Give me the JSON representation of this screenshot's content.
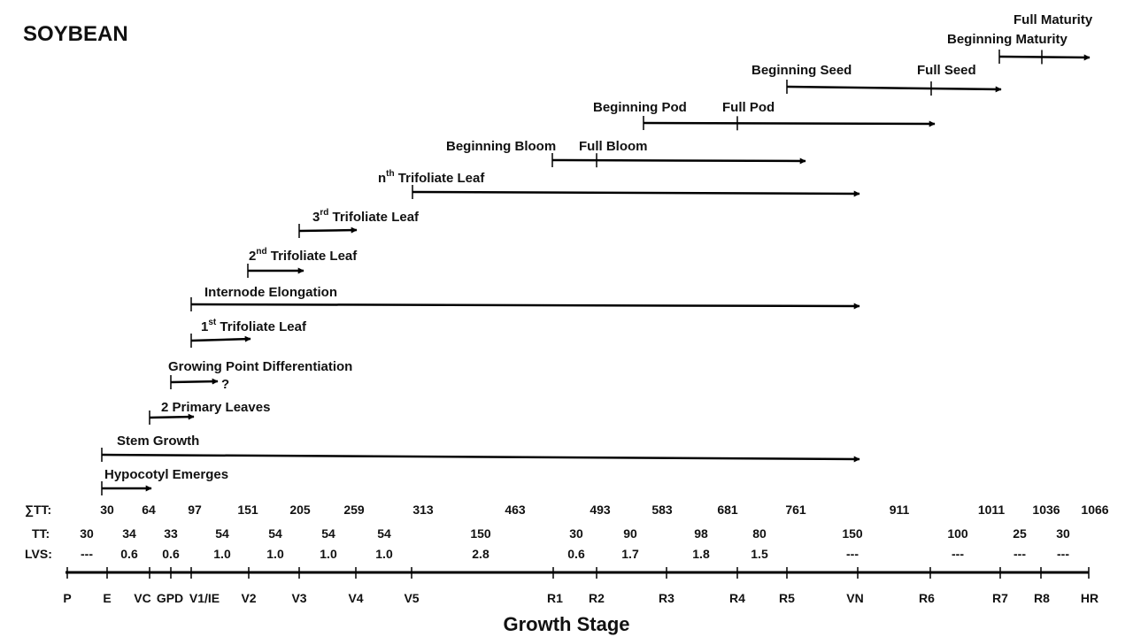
{
  "title": "SOYBEAN",
  "axis_title": "Growth Stage",
  "row_labels": {
    "sum_tt": "∑TT:",
    "tt": "TT:",
    "lvs": "LVS:"
  },
  "stages": [
    {
      "key": "P",
      "label": "P"
    },
    {
      "key": "E",
      "label": "E"
    },
    {
      "key": "VC",
      "label": "VC"
    },
    {
      "key": "GPD",
      "label": "GPD"
    },
    {
      "key": "V1",
      "label": "V1/IE"
    },
    {
      "key": "V2",
      "label": "V2"
    },
    {
      "key": "V3",
      "label": "V3"
    },
    {
      "key": "V4",
      "label": "V4"
    },
    {
      "key": "V5",
      "label": "V5"
    },
    {
      "key": "R1",
      "label": "R1"
    },
    {
      "key": "R2",
      "label": "R2"
    },
    {
      "key": "R3",
      "label": "R3"
    },
    {
      "key": "R4",
      "label": "R4"
    },
    {
      "key": "R5",
      "label": "R5"
    },
    {
      "key": "VN",
      "label": "VN"
    },
    {
      "key": "R6",
      "label": "R6"
    },
    {
      "key": "R7",
      "label": "R7"
    },
    {
      "key": "R8",
      "label": "R8"
    },
    {
      "key": "HR",
      "label": "HR"
    }
  ],
  "sum_tt": [
    "30",
    "64",
    "97",
    "151",
    "205",
    "259",
    "313",
    "463",
    "493",
    "583",
    "681",
    "761",
    "911",
    "1011",
    "1036",
    "1066"
  ],
  "tt": [
    "30",
    "34",
    "33",
    "54",
    "54",
    "54",
    "54",
    "150",
    "30",
    "90",
    "98",
    "80",
    "150",
    "100",
    "25",
    "30"
  ],
  "lvs": [
    "---",
    "0.6",
    "0.6",
    "1.0",
    "1.0",
    "1.0",
    "1.0",
    "2.8",
    "0.6",
    "1.7",
    "1.8",
    "1.5",
    "---",
    "---",
    "---",
    "---"
  ],
  "events": [
    {
      "name": "hypocotyl-emerges",
      "label": "Hypocotyl Emerges",
      "from": "E",
      "to": "VC"
    },
    {
      "name": "stem-growth",
      "label": "Stem Growth",
      "from": "E",
      "to": "VN"
    },
    {
      "name": "2-primary-leaves",
      "label": "2 Primary Leaves",
      "from": "VC",
      "to": "V1"
    },
    {
      "name": "growing-point-diff",
      "label": "Growing Point Differentiation",
      "from": "GPD",
      "to": "V1+",
      "suffix": "?"
    },
    {
      "name": "1st-trifoliate",
      "sup": "st",
      "pre": "1",
      "label": " Trifoliate  Leaf",
      "from": "V1",
      "to": "V2"
    },
    {
      "name": "internode-elong",
      "label": "Internode Elongation",
      "from": "V1",
      "to": "VN"
    },
    {
      "name": "2nd-trifoliate",
      "sup": "nd",
      "pre": "2",
      "label": " Trifoliate  Leaf",
      "from": "V2",
      "to": "V3"
    },
    {
      "name": "3rd-trifoliate",
      "sup": "rd",
      "pre": "3",
      "label": " Trifoliate  Leaf",
      "from": "V3",
      "to": "V4"
    },
    {
      "name": "nth-trifoliate",
      "sup": "th",
      "pre": "n",
      "label": " Trifoliate  Leaf",
      "from": "V5",
      "to": "VN"
    },
    {
      "name": "beginning-bloom",
      "label": "Beginning Bloom"
    },
    {
      "name": "full-bloom",
      "label": "Full Bloom"
    },
    {
      "name": "beginning-pod",
      "label": "Beginning Pod"
    },
    {
      "name": "full-pod",
      "label": "Full Pod"
    },
    {
      "name": "beginning-seed",
      "label": "Beginning Seed"
    },
    {
      "name": "full-seed",
      "label": "Full Seed"
    },
    {
      "name": "beginning-maturity",
      "label": "Beginning Maturity"
    },
    {
      "name": "full-maturity",
      "label": "Full Maturity"
    }
  ]
}
